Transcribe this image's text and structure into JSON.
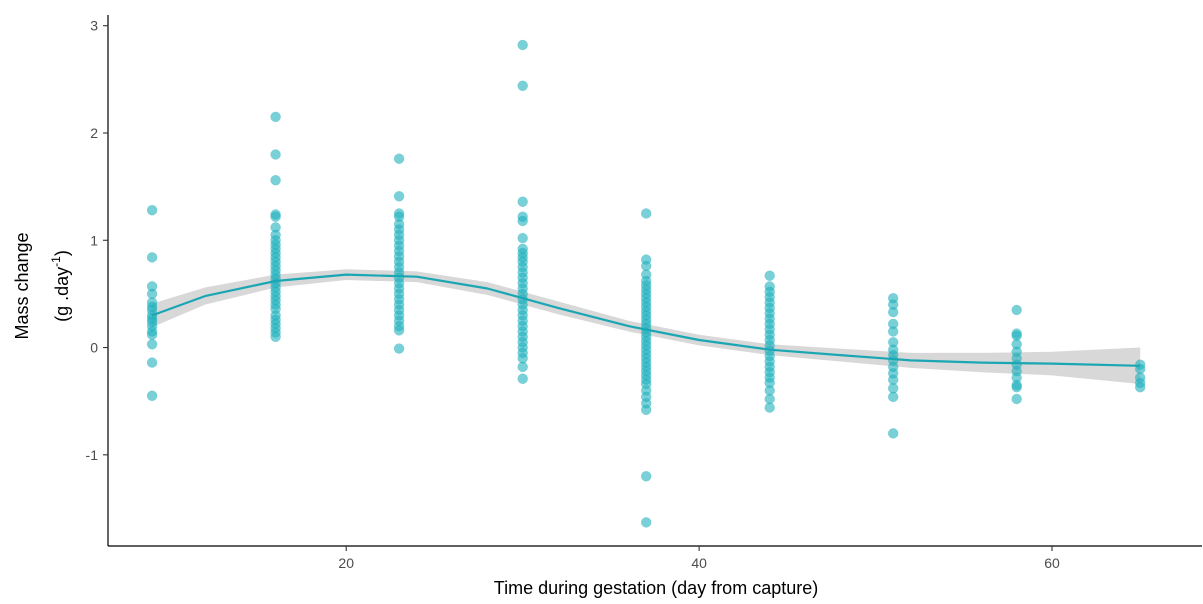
{
  "chart_data": {
    "type": "scatter",
    "title": "",
    "xlabel": "Time during gestation (day from capture)",
    "ylabel": {
      "line1": "Mass change",
      "line2_prefix": "(g .day",
      "line2_sup": "-1",
      "line2_suffix": ")"
    },
    "xlim": [
      6.5,
      68.5
    ],
    "ylim": [
      -1.85,
      3.1
    ],
    "x_ticks": [
      20,
      40,
      60
    ],
    "x_tick_labels": [
      "20",
      "40",
      "60"
    ],
    "y_ticks": [
      -1,
      0,
      1,
      2,
      3
    ],
    "y_tick_labels": [
      "-1",
      "0",
      "1",
      "2",
      "3"
    ],
    "grid": false,
    "legend": "none",
    "colors": {
      "points": "#1fb0bd",
      "line": "#1aa6b3",
      "ribbon": "#bebebe"
    },
    "series": [
      {
        "type": "scatter",
        "points": [
          [
            9,
            1.28
          ],
          [
            9,
            0.84
          ],
          [
            9,
            0.57
          ],
          [
            9,
            0.5
          ],
          [
            9,
            0.42
          ],
          [
            9,
            0.38
          ],
          [
            9,
            0.35
          ],
          [
            9,
            0.3
          ],
          [
            9,
            0.27
          ],
          [
            9,
            0.24
          ],
          [
            9,
            0.2
          ],
          [
            9,
            0.15
          ],
          [
            9,
            0.12
          ],
          [
            9,
            0.03
          ],
          [
            9,
            -0.14
          ],
          [
            9,
            -0.45
          ],
          [
            16,
            2.15
          ],
          [
            16,
            1.8
          ],
          [
            16,
            1.56
          ],
          [
            16,
            1.24
          ],
          [
            16,
            1.22
          ],
          [
            16,
            1.12
          ],
          [
            16,
            1.05
          ],
          [
            16,
            1.0
          ],
          [
            16,
            0.96
          ],
          [
            16,
            0.92
          ],
          [
            16,
            0.88
          ],
          [
            16,
            0.84
          ],
          [
            16,
            0.8
          ],
          [
            16,
            0.76
          ],
          [
            16,
            0.72
          ],
          [
            16,
            0.68
          ],
          [
            16,
            0.64
          ],
          [
            16,
            0.6
          ],
          [
            16,
            0.56
          ],
          [
            16,
            0.52
          ],
          [
            16,
            0.48
          ],
          [
            16,
            0.44
          ],
          [
            16,
            0.4
          ],
          [
            16,
            0.36
          ],
          [
            16,
            0.3
          ],
          [
            16,
            0.26
          ],
          [
            16,
            0.22
          ],
          [
            16,
            0.18
          ],
          [
            16,
            0.14
          ],
          [
            16,
            0.1
          ],
          [
            23,
            1.76
          ],
          [
            23,
            1.41
          ],
          [
            23,
            1.25
          ],
          [
            23,
            1.22
          ],
          [
            23,
            1.15
          ],
          [
            23,
            1.1
          ],
          [
            23,
            1.05
          ],
          [
            23,
            1.0
          ],
          [
            23,
            0.95
          ],
          [
            23,
            0.9
          ],
          [
            23,
            0.85
          ],
          [
            23,
            0.8
          ],
          [
            23,
            0.75
          ],
          [
            23,
            0.7
          ],
          [
            23,
            0.65
          ],
          [
            23,
            0.6
          ],
          [
            23,
            0.55
          ],
          [
            23,
            0.5
          ],
          [
            23,
            0.45
          ],
          [
            23,
            0.4
          ],
          [
            23,
            0.35
          ],
          [
            23,
            0.3
          ],
          [
            23,
            0.25
          ],
          [
            23,
            0.2
          ],
          [
            23,
            0.16
          ],
          [
            23,
            -0.01
          ],
          [
            30,
            2.82
          ],
          [
            30,
            2.44
          ],
          [
            30,
            1.36
          ],
          [
            30,
            1.22
          ],
          [
            30,
            1.18
          ],
          [
            30,
            1.02
          ],
          [
            30,
            0.92
          ],
          [
            30,
            0.88
          ],
          [
            30,
            0.84
          ],
          [
            30,
            0.8
          ],
          [
            30,
            0.75
          ],
          [
            30,
            0.7
          ],
          [
            30,
            0.65
          ],
          [
            30,
            0.6
          ],
          [
            30,
            0.55
          ],
          [
            30,
            0.5
          ],
          [
            30,
            0.45
          ],
          [
            30,
            0.4
          ],
          [
            30,
            0.35
          ],
          [
            30,
            0.3
          ],
          [
            30,
            0.25
          ],
          [
            30,
            0.2
          ],
          [
            30,
            0.15
          ],
          [
            30,
            0.1
          ],
          [
            30,
            0.05
          ],
          [
            30,
            0.0
          ],
          [
            30,
            -0.05
          ],
          [
            30,
            -0.1
          ],
          [
            30,
            -0.18
          ],
          [
            30,
            -0.29
          ],
          [
            37,
            1.25
          ],
          [
            37,
            0.82
          ],
          [
            37,
            0.76
          ],
          [
            37,
            0.68
          ],
          [
            37,
            0.62
          ],
          [
            37,
            0.58
          ],
          [
            37,
            0.54
          ],
          [
            37,
            0.5
          ],
          [
            37,
            0.46
          ],
          [
            37,
            0.42
          ],
          [
            37,
            0.38
          ],
          [
            37,
            0.34
          ],
          [
            37,
            0.3
          ],
          [
            37,
            0.26
          ],
          [
            37,
            0.22
          ],
          [
            37,
            0.18
          ],
          [
            37,
            0.14
          ],
          [
            37,
            0.1
          ],
          [
            37,
            0.06
          ],
          [
            37,
            0.02
          ],
          [
            37,
            -0.02
          ],
          [
            37,
            -0.06
          ],
          [
            37,
            -0.1
          ],
          [
            37,
            -0.14
          ],
          [
            37,
            -0.18
          ],
          [
            37,
            -0.22
          ],
          [
            37,
            -0.26
          ],
          [
            37,
            -0.3
          ],
          [
            37,
            -0.34
          ],
          [
            37,
            -0.4
          ],
          [
            37,
            -0.46
          ],
          [
            37,
            -0.52
          ],
          [
            37,
            -0.58
          ],
          [
            37,
            -1.2
          ],
          [
            37,
            -1.63
          ],
          [
            44,
            0.67
          ],
          [
            44,
            0.57
          ],
          [
            44,
            0.52
          ],
          [
            44,
            0.47
          ],
          [
            44,
            0.42
          ],
          [
            44,
            0.37
          ],
          [
            44,
            0.32
          ],
          [
            44,
            0.27
          ],
          [
            44,
            0.22
          ],
          [
            44,
            0.17
          ],
          [
            44,
            0.12
          ],
          [
            44,
            0.07
          ],
          [
            44,
            0.02
          ],
          [
            44,
            -0.03
          ],
          [
            44,
            -0.08
          ],
          [
            44,
            -0.13
          ],
          [
            44,
            -0.18
          ],
          [
            44,
            -0.23
          ],
          [
            44,
            -0.28
          ],
          [
            44,
            -0.33
          ],
          [
            44,
            -0.4
          ],
          [
            44,
            -0.48
          ],
          [
            44,
            -0.56
          ],
          [
            51,
            0.46
          ],
          [
            51,
            0.4
          ],
          [
            51,
            0.33
          ],
          [
            51,
            0.22
          ],
          [
            51,
            0.15
          ],
          [
            51,
            0.05
          ],
          [
            51,
            -0.02
          ],
          [
            51,
            -0.07
          ],
          [
            51,
            -0.12
          ],
          [
            51,
            -0.18
          ],
          [
            51,
            -0.24
          ],
          [
            51,
            -0.3
          ],
          [
            51,
            -0.38
          ],
          [
            51,
            -0.46
          ],
          [
            51,
            -0.8
          ],
          [
            58,
            0.35
          ],
          [
            58,
            0.13
          ],
          [
            58,
            0.11
          ],
          [
            58,
            0.03
          ],
          [
            58,
            -0.04
          ],
          [
            58,
            -0.1
          ],
          [
            58,
            -0.16
          ],
          [
            58,
            -0.22
          ],
          [
            58,
            -0.28
          ],
          [
            58,
            -0.35
          ],
          [
            58,
            -0.37
          ],
          [
            58,
            -0.48
          ],
          [
            65,
            -0.16
          ],
          [
            65,
            -0.2
          ],
          [
            65,
            -0.28
          ],
          [
            65,
            -0.33
          ],
          [
            65,
            -0.37
          ]
        ]
      },
      {
        "type": "line",
        "x": [
          9,
          12,
          16,
          20,
          24,
          28,
          32,
          36,
          40,
          44,
          48,
          52,
          56,
          60,
          65
        ],
        "y": [
          0.3,
          0.48,
          0.62,
          0.68,
          0.66,
          0.55,
          0.37,
          0.2,
          0.07,
          -0.02,
          -0.07,
          -0.12,
          -0.14,
          -0.15,
          -0.17
        ],
        "ci_lower": [
          0.19,
          0.4,
          0.56,
          0.63,
          0.61,
          0.49,
          0.31,
          0.15,
          0.02,
          -0.07,
          -0.13,
          -0.19,
          -0.23,
          -0.26,
          -0.34
        ],
        "ci_upper": [
          0.41,
          0.56,
          0.68,
          0.73,
          0.71,
          0.61,
          0.43,
          0.25,
          0.12,
          0.03,
          -0.01,
          -0.05,
          -0.05,
          -0.04,
          0.0
        ]
      }
    ]
  }
}
